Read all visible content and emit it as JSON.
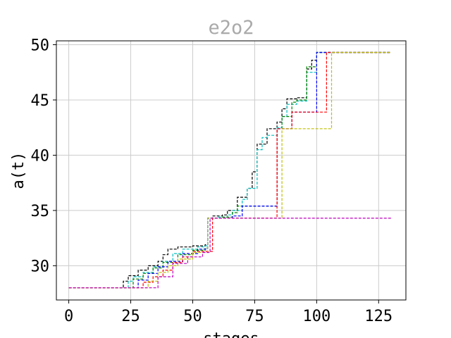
{
  "chart_data": {
    "type": "line",
    "title": "e2o2",
    "xlabel": "stages",
    "ylabel": "a(t)",
    "xlim": [
      -5,
      136
    ],
    "ylim": [
      26.9,
      50.35
    ],
    "xticks": [
      0,
      25,
      50,
      75,
      100,
      125
    ],
    "yticks": [
      30,
      35,
      40,
      45,
      50
    ],
    "grid": true,
    "line_style": "dashed",
    "series": [
      {
        "color": "#000000",
        "x": [
          0,
          20,
          22,
          24,
          28,
          32,
          36,
          38,
          40,
          44,
          50,
          55,
          56,
          58,
          62,
          64,
          68,
          72,
          74,
          76,
          80,
          84,
          86,
          88,
          92,
          96,
          98,
          100,
          130
        ],
        "y": [
          28.0,
          28.0,
          28.6,
          29.1,
          29.6,
          30.0,
          30.4,
          31.0,
          31.5,
          31.7,
          31.8,
          31.9,
          34.3,
          34.5,
          34.6,
          35.0,
          36.2,
          37.0,
          38.5,
          41.0,
          42.4,
          43.0,
          44.2,
          45.1,
          45.2,
          47.8,
          48.6,
          49.3,
          49.3
        ]
      },
      {
        "color": "#00bfbf",
        "x": [
          0,
          22,
          24,
          26,
          30,
          34,
          38,
          42,
          46,
          52,
          55,
          56,
          60,
          64,
          66,
          70,
          72,
          76,
          78,
          80,
          84,
          86,
          88,
          92,
          96,
          100,
          130
        ],
        "y": [
          28.0,
          28.0,
          28.6,
          29.0,
          29.4,
          29.9,
          30.4,
          31.1,
          31.5,
          31.7,
          31.8,
          34.3,
          34.4,
          34.6,
          35.0,
          36.0,
          37.0,
          40.5,
          41.6,
          41.8,
          42.5,
          43.5,
          44.6,
          44.9,
          47.5,
          49.3,
          49.3
        ]
      },
      {
        "color": "#008000",
        "x": [
          0,
          22,
          26,
          30,
          34,
          38,
          44,
          50,
          55,
          56,
          62,
          66,
          68,
          82,
          84,
          86,
          90,
          92,
          96,
          100,
          130
        ],
        "y": [
          28.0,
          28.0,
          28.8,
          29.3,
          29.8,
          30.3,
          31.0,
          31.4,
          31.6,
          34.3,
          34.4,
          34.8,
          35.4,
          35.4,
          42.4,
          43.5,
          44.8,
          45.0,
          48.0,
          49.3,
          49.3
        ]
      },
      {
        "color": "#0000ff",
        "x": [
          0,
          24,
          28,
          32,
          36,
          40,
          46,
          52,
          56,
          58,
          66,
          70,
          82,
          84,
          88,
          90,
          100,
          130
        ],
        "y": [
          28.0,
          28.0,
          28.7,
          29.3,
          29.9,
          30.4,
          31.1,
          31.5,
          34.3,
          34.3,
          34.5,
          35.4,
          35.4,
          42.4,
          42.4,
          43.9,
          49.3,
          49.3
        ]
      },
      {
        "color": "#ff0000",
        "x": [
          0,
          26,
          30,
          34,
          38,
          42,
          46,
          50,
          56,
          58,
          70,
          83,
          84,
          88,
          90,
          102,
          104,
          130
        ],
        "y": [
          28.0,
          28.0,
          28.5,
          29.0,
          29.6,
          30.3,
          30.8,
          31.3,
          31.3,
          34.3,
          34.3,
          34.3,
          42.4,
          42.4,
          43.9,
          43.9,
          49.3,
          49.3
        ]
      },
      {
        "color": "#bfbf00",
        "x": [
          0,
          28,
          32,
          36,
          40,
          44,
          50,
          56,
          84,
          86,
          90,
          104,
          106,
          130
        ],
        "y": [
          28.0,
          28.0,
          28.6,
          29.4,
          30.0,
          30.6,
          31.2,
          34.3,
          34.3,
          42.4,
          42.4,
          42.4,
          49.3,
          49.3
        ]
      },
      {
        "color": "#bf00bf",
        "x": [
          0,
          34,
          36,
          40,
          42,
          48,
          54,
          57,
          130
        ],
        "y": [
          28.0,
          28.0,
          29.0,
          29.0,
          30.2,
          30.8,
          31.2,
          34.3,
          34.3
        ]
      }
    ]
  }
}
